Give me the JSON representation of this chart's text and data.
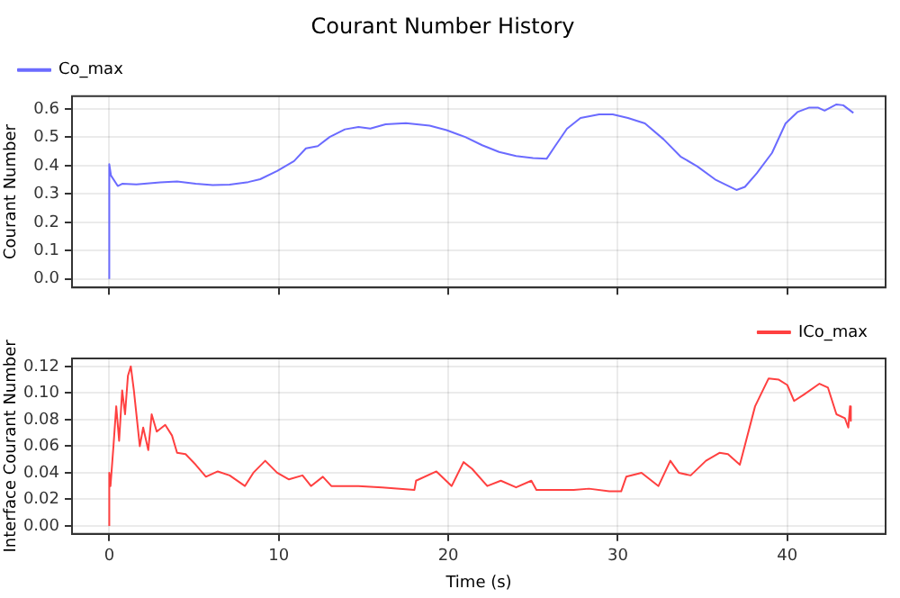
{
  "chart_data": [
    {
      "type": "line",
      "title": "Courant Number History",
      "ylabel": "Courant Number",
      "xlim": [
        -2.2,
        45.8
      ],
      "xticks": [
        0,
        10,
        20,
        30,
        40
      ],
      "ylim": [
        -0.03,
        0.645
      ],
      "yticks": [
        {
          "value": 0,
          "label": "0.0"
        },
        0.1,
        0.2,
        0.3,
        0.4,
        0.5,
        0.6
      ],
      "tick_labels": "y",
      "grid": true,
      "legend": "top left",
      "line_style": "solid",
      "marker": "none",
      "series": [
        {
          "name": "Co_max",
          "color": "#6b6bff",
          "x": [
            0,
            0,
            0.1,
            0.5,
            0.76,
            1.6,
            3,
            4,
            5.1,
            6.1,
            7.1,
            8.2,
            8.9,
            9.9,
            10.9,
            11.6,
            12.3,
            13.0,
            13.9,
            14.7,
            15.4,
            16.3,
            17.5,
            18.9,
            19.9,
            21.0,
            22.0,
            23.0,
            24.0,
            25.0,
            25.8,
            26.3,
            27.0,
            27.8,
            28.9,
            29.7,
            30.6,
            31.6,
            32.7,
            33.7,
            34.7,
            35.8,
            37.0,
            37.5,
            38.2,
            39.1,
            39.9,
            40.6,
            41.3,
            41.8,
            42.2,
            42.9,
            43.3,
            43.9
          ],
          "values": [
            0,
            0.405,
            0.365,
            0.328,
            0.336,
            0.334,
            0.341,
            0.344,
            0.336,
            0.331,
            0.333,
            0.342,
            0.352,
            0.381,
            0.416,
            0.461,
            0.469,
            0.501,
            0.528,
            0.536,
            0.531,
            0.546,
            0.55,
            0.541,
            0.525,
            0.501,
            0.472,
            0.448,
            0.434,
            0.427,
            0.424,
            0.469,
            0.53,
            0.568,
            0.581,
            0.581,
            0.568,
            0.549,
            0.493,
            0.432,
            0.397,
            0.349,
            0.314,
            0.325,
            0.373,
            0.445,
            0.549,
            0.589,
            0.605,
            0.605,
            0.594,
            0.616,
            0.613,
            0.586
          ]
        }
      ]
    },
    {
      "type": "line",
      "xlabel": "Time (s)",
      "ylabel": "Interface Courant Number",
      "xlim": [
        -2.2,
        45.8
      ],
      "xticks": [
        0,
        10,
        20,
        30,
        40
      ],
      "ylim": [
        -0.006,
        0.126
      ],
      "yticks": [
        {
          "value": 0,
          "label": "0.00"
        },
        {
          "value": 0.02,
          "label": "0.02"
        },
        {
          "value": 0.04,
          "label": "0.04"
        },
        {
          "value": 0.06,
          "label": "0.06"
        },
        {
          "value": 0.08,
          "label": "0.08"
        },
        {
          "value": 0.1,
          "label": "0.10"
        },
        {
          "value": 0.12,
          "label": "0.12"
        }
      ],
      "grid": true,
      "legend": "top right",
      "line_style": "solid",
      "marker": "none",
      "series": [
        {
          "name": "ICo_max",
          "color": "#ff4040",
          "x": [
            0,
            0,
            0.07,
            0.24,
            0.41,
            0.58,
            0.76,
            0.93,
            1.1,
            1.27,
            1.45,
            1.8,
            2.0,
            2.3,
            2.5,
            2.8,
            3.3,
            3.7,
            4.0,
            4.5,
            5.1,
            5.7,
            6.4,
            7.1,
            8.0,
            8.5,
            9.2,
            9.9,
            10.6,
            11.4,
            11.9,
            12.6,
            13.1,
            14.7,
            16.1,
            18.0,
            18.1,
            19.3,
            20.2,
            20.9,
            21.4,
            22.3,
            23.1,
            24.0,
            24.9,
            25.2,
            27.4,
            28.3,
            29.5,
            30.2,
            30.5,
            31.4,
            32.4,
            33.1,
            33.6,
            34.3,
            35.2,
            36.0,
            36.5,
            37.2,
            38.1,
            38.9,
            39.5,
            40.0,
            40.4,
            41.0,
            41.9,
            42.4,
            42.9,
            43.4,
            43.6,
            43.7,
            43.75
          ],
          "values": [
            0,
            0.04,
            0.03,
            0.059,
            0.09,
            0.064,
            0.102,
            0.084,
            0.113,
            0.12,
            0.102,
            0.06,
            0.074,
            0.057,
            0.084,
            0.071,
            0.076,
            0.068,
            0.055,
            0.054,
            0.046,
            0.037,
            0.041,
            0.038,
            0.03,
            0.04,
            0.049,
            0.04,
            0.035,
            0.038,
            0.03,
            0.037,
            0.03,
            0.03,
            0.029,
            0.027,
            0.034,
            0.041,
            0.03,
            0.048,
            0.043,
            0.03,
            0.034,
            0.029,
            0.034,
            0.027,
            0.027,
            0.028,
            0.026,
            0.026,
            0.037,
            0.04,
            0.03,
            0.049,
            0.04,
            0.038,
            0.049,
            0.055,
            0.054,
            0.046,
            0.09,
            0.111,
            0.11,
            0.106,
            0.094,
            0.099,
            0.107,
            0.104,
            0.084,
            0.081,
            0.074,
            0.09,
            0.079
          ]
        }
      ]
    }
  ]
}
